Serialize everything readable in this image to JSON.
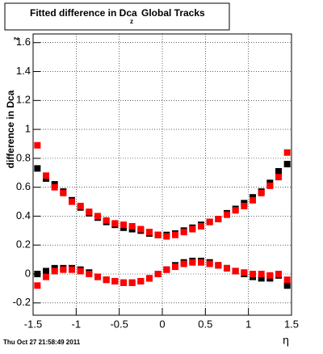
{
  "chart_data": {
    "type": "scatter",
    "title": "Fitted difference in Dca",
    "title_subscript": "z",
    "title_suffix": "Global Tracks",
    "y_label": "difference in Dca",
    "y_label_suffix": "z",
    "x_label": "η",
    "footer": "Thu Oct 27 21:58:49 2011",
    "x": [
      -1.45,
      -1.35,
      -1.25,
      -1.15,
      -1.05,
      -0.95,
      -0.85,
      -0.75,
      -0.65,
      -0.55,
      -0.45,
      -0.35,
      -0.25,
      -0.15,
      -0.05,
      0.05,
      0.15,
      0.25,
      0.35,
      0.45,
      0.55,
      0.65,
      0.75,
      0.85,
      0.95,
      1.05,
      1.15,
      1.25,
      1.35,
      1.45
    ],
    "series": [
      {
        "color": "#000000",
        "values": [
          0.73,
          0.66,
          0.62,
          0.57,
          0.51,
          0.46,
          0.42,
          0.39,
          0.36,
          0.34,
          0.32,
          0.31,
          0.3,
          0.28,
          0.27,
          0.27,
          0.28,
          0.3,
          0.32,
          0.34,
          0.36,
          0.38,
          0.42,
          0.45,
          0.49,
          0.53,
          0.57,
          0.63,
          0.71,
          0.76
        ]
      },
      {
        "color": "#000000",
        "values": [
          0.0,
          0.02,
          0.04,
          0.04,
          0.04,
          0.03,
          0.01,
          -0.02,
          -0.04,
          -0.05,
          -0.06,
          -0.06,
          -0.05,
          -0.03,
          0.0,
          0.03,
          0.06,
          0.08,
          0.09,
          0.09,
          0.08,
          0.06,
          0.04,
          0.02,
          0.0,
          -0.02,
          -0.03,
          -0.03,
          -0.01,
          -0.08
        ]
      },
      {
        "color": "#ff0000",
        "values": [
          0.89,
          0.68,
          0.6,
          0.56,
          0.5,
          0.47,
          0.43,
          0.4,
          0.37,
          0.35,
          0.34,
          0.33,
          0.31,
          0.29,
          0.27,
          0.26,
          0.27,
          0.29,
          0.31,
          0.33,
          0.36,
          0.38,
          0.41,
          0.44,
          0.47,
          0.51,
          0.56,
          0.61,
          0.67,
          0.84
        ]
      },
      {
        "color": "#ff0000",
        "values": [
          -0.08,
          -0.02,
          0.02,
          0.03,
          0.03,
          0.02,
          0.0,
          -0.02,
          -0.04,
          -0.05,
          -0.06,
          -0.06,
          -0.05,
          -0.03,
          0.0,
          0.03,
          0.05,
          0.07,
          0.08,
          0.08,
          0.07,
          0.06,
          0.04,
          0.02,
          0.01,
          0.0,
          0.0,
          -0.01,
          0.0,
          -0.04
        ]
      }
    ],
    "xlim": [
      -1.5,
      1.5
    ],
    "xticks": [
      -1.5,
      -1,
      -0.5,
      0,
      0.5,
      1,
      1.5
    ],
    "ylim": [
      -0.285,
      1.66
    ],
    "yticks": [
      -0.2,
      0,
      0.2,
      0.4,
      0.6,
      0.8,
      1,
      1.2,
      1.4,
      1.6
    ],
    "grid": true
  }
}
